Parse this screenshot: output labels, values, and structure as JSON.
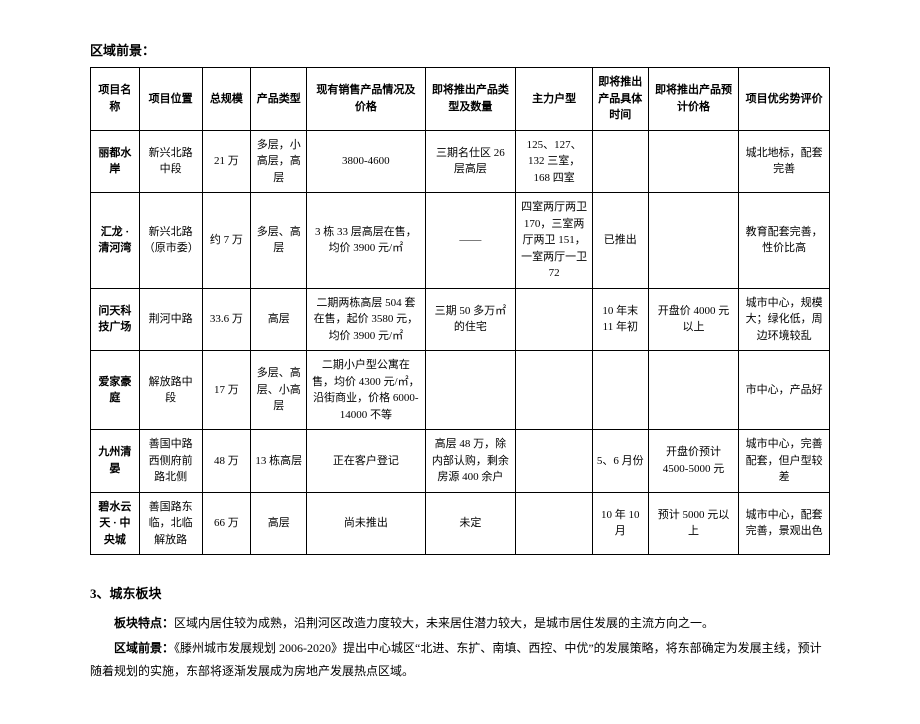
{
  "top_title": "区域前景：",
  "table": {
    "headers": [
      "项目名称",
      "项目位置",
      "总规模",
      "产品类型",
      "现有销售产品情况及价格",
      "即将推出产品类型及数量",
      "主力户型",
      "即将推出产品具体时间",
      "即将推出产品预计价格",
      "项目优劣势评价"
    ],
    "rows": [
      {
        "name": "丽都水岸",
        "location": "新兴北路中段",
        "scale": "21 万",
        "ptype": "多层，小高层，高层",
        "current": "3800-4600",
        "upcoming": "三期名仕区 26 层高层",
        "unit": "125、127、132 三室，168 四室",
        "time": "",
        "price": "",
        "eval": "城北地标，配套完善"
      },
      {
        "name": "汇龙 · 清河湾",
        "location": "新兴北路（原市委）",
        "scale": "约 7 万",
        "ptype": "多层、高层",
        "current": "3 栋 33 层高层在售，均价 3900 元/㎡",
        "upcoming": "——",
        "unit": "四室两厅两卫 170，三室两厅两卫 151，一室两厅一卫 72",
        "time": "已推出",
        "price": "",
        "eval": "教育配套完善，性价比高"
      },
      {
        "name": "问天科技广场",
        "location": "荆河中路",
        "scale": "33.6 万",
        "ptype": "高层",
        "current": "二期两栋高层 504 套在售，起价 3580 元，均价 3900 元/㎡",
        "upcoming": "三期 50 多万㎡的住宅",
        "unit": "",
        "time": "10 年末 11 年初",
        "price": "开盘价 4000 元以上",
        "eval": "城市中心，规模大；绿化低，周边环境较乱"
      },
      {
        "name": "爱家豪庭",
        "location": "解放路中段",
        "scale": "17 万",
        "ptype": "多层、高层、小高层",
        "current": "二期小户型公寓在售，均价 4300 元/㎡，沿街商业，价格 6000-14000 不等",
        "upcoming": "",
        "unit": "",
        "time": "",
        "price": "",
        "eval": "市中心，产品好"
      },
      {
        "name": "九州清晏",
        "location": "善国中路西侧府前路北侧",
        "scale": "48 万",
        "ptype": "13 栋高层",
        "current": "正在客户登记",
        "upcoming": "高层 48 万，除内部认购，剩余房源 400 余户",
        "unit": "",
        "time": "5、6 月份",
        "price": "开盘价预计 4500-5000 元",
        "eval": "城市中心，完善配套，但户型较差"
      },
      {
        "name": "碧水云天 · 中央城",
        "location": "善国路东临，北临解放路",
        "scale": "66 万",
        "ptype": "高层",
        "current": "尚未推出",
        "upcoming": "未定",
        "unit": "",
        "time": "10 年 10 月",
        "price": "预计 5000 元以上",
        "eval": "城市中心，配套完善，景观出色"
      }
    ]
  },
  "section2": {
    "heading": "3、城东板块",
    "para1_label": "板块特点：",
    "para1_text": "区域内居住较为成熟，沿荆河区改造力度较大，未来居住潜力较大，是城市居住发展的主流方向之一。",
    "para2_label": "区域前景：",
    "para2_text": "《滕州城市发展规划 2006-2020》提出中心城区“北进、东扩、南填、西控、中优”的发展策略，将东部确定为发展主线，预计随着规划的实施，东部将逐渐发展成为房地产发展热点区域。"
  }
}
